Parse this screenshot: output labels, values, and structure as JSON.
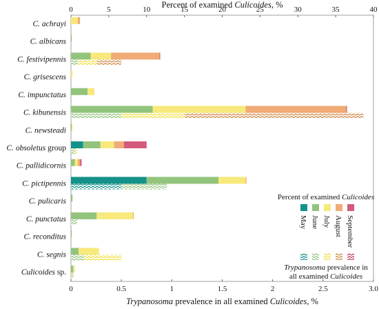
{
  "chart_data": {
    "type": "bar",
    "orientation": "horizontal",
    "stacked": true,
    "top_axis": {
      "label_prefix": "Percent of examined ",
      "label_italic": "Culicoides",
      "label_suffix": ", %",
      "range": [
        0,
        40
      ],
      "ticks": [
        "0",
        "5",
        "10",
        "15",
        "20",
        "25",
        "30",
        "35",
        "40"
      ]
    },
    "bottom_axis": {
      "label_italic": "Trypanosoma",
      "label_middle": " prevalence in all examined ",
      "label_italic2": "Culicoides",
      "label_suffix": ", %",
      "range": [
        0,
        3
      ],
      "ticks": [
        "0",
        "0.5",
        "1",
        "1.5",
        "2",
        "2.5",
        "3.0"
      ]
    },
    "months": [
      "May",
      "June",
      "July",
      "August",
      "September"
    ],
    "colors": [
      "#14928a",
      "#93c47d",
      "#f7e97b",
      "#f0ab76",
      "#d45a7b"
    ],
    "pattern_colors": [
      "#14928a",
      "#93c47d",
      "#f0e040",
      "#d08a48",
      "#c9385c"
    ],
    "legend": {
      "title_prefix": "Percent of examined ",
      "title_italic": "Culicoides",
      "bottom_italic": "Trypanosoma",
      "bottom_line1": " prevalence in",
      "bottom_line2": "all examined ",
      "bottom_italic2": "Culicoides"
    },
    "species": [
      {
        "label": "C. achrayi",
        "italic_part": "C. achrayi",
        "rest": "",
        "percent": [
          0,
          0,
          0.9,
          0.3,
          0
        ],
        "prevalence": [
          0,
          0,
          0,
          0,
          0
        ]
      },
      {
        "label": "C. albicans",
        "italic_part": "C. albicans",
        "rest": "",
        "percent": [
          0,
          0.1,
          0,
          0,
          0
        ],
        "prevalence": [
          0,
          0,
          0,
          0,
          0
        ]
      },
      {
        "label": "C. festivipennis",
        "italic_part": "C. festivipennis",
        "rest": "",
        "percent": [
          0,
          2.6,
          2.7,
          6.4,
          0.1
        ],
        "prevalence": [
          0,
          0.07,
          0.19,
          0.24,
          0
        ]
      },
      {
        "label": "C. grisescens",
        "italic_part": "C. grisescens",
        "rest": "",
        "percent": [
          0,
          0,
          0.2,
          0,
          0
        ],
        "prevalence": [
          0,
          0,
          0,
          0,
          0
        ]
      },
      {
        "label": "C. impunctatus",
        "italic_part": "C. impunctatus",
        "rest": "",
        "percent": [
          0,
          2.2,
          0.9,
          0,
          0
        ],
        "prevalence": [
          0,
          0,
          0,
          0,
          0
        ]
      },
      {
        "label": "C. kibunensis",
        "italic_part": "C. kibunensis",
        "rest": "",
        "percent": [
          0,
          10.8,
          12.3,
          13.3,
          0.1
        ],
        "prevalence": [
          0,
          0.5,
          0.63,
          1.77,
          0
        ]
      },
      {
        "label": "C. newsteadi",
        "italic_part": "C. newsteadi",
        "rest": "",
        "percent": [
          0,
          0.1,
          0.1,
          0,
          0
        ],
        "prevalence": [
          0,
          0,
          0,
          0,
          0
        ]
      },
      {
        "label": "C. obsoletus group",
        "italic_part": "C. obsoletus",
        "rest": " group",
        "percent": [
          1.6,
          2.3,
          1.8,
          1.3,
          3.0
        ],
        "prevalence": [
          0,
          0.04,
          0.02,
          0,
          0
        ]
      },
      {
        "label": "C. pallidicornis",
        "italic_part": "C. pallidicornis",
        "rest": "",
        "percent": [
          0,
          0.5,
          0.4,
          0.3,
          0.2
        ],
        "prevalence": [
          0,
          0,
          0,
          0,
          0
        ]
      },
      {
        "label": "C. pictipennis",
        "italic_part": "C. pictipennis",
        "rest": "",
        "percent": [
          10.0,
          9.5,
          3.6,
          0.1,
          0
        ],
        "prevalence": [
          0.5,
          0.45,
          0,
          0,
          0
        ]
      },
      {
        "label": "C. pulicaris",
        "italic_part": "C. pulicaris",
        "rest": "",
        "percent": [
          0,
          0.2,
          0,
          0,
          0
        ],
        "prevalence": [
          0,
          0,
          0,
          0,
          0
        ]
      },
      {
        "label": "C. punctatus",
        "italic_part": "C. punctatus",
        "rest": "",
        "percent": [
          0,
          3.4,
          4.8,
          0.1,
          0
        ],
        "prevalence": [
          0,
          0.06,
          0,
          0,
          0
        ]
      },
      {
        "label": "C. reconditus",
        "italic_part": "C. reconditus",
        "rest": "",
        "percent": [
          0,
          0.1,
          0,
          0,
          0
        ],
        "prevalence": [
          0,
          0,
          0,
          0,
          0
        ]
      },
      {
        "label": "C. segnis",
        "italic_part": "C. segnis",
        "rest": "",
        "percent": [
          0,
          1.0,
          2.7,
          0,
          0
        ],
        "prevalence": [
          0,
          0.13,
          0.37,
          0,
          0
        ]
      },
      {
        "label": "Culicoides sp.",
        "italic_part": "Culicoides",
        "rest": " sp.",
        "percent": [
          0,
          0.3,
          0.2,
          0,
          0
        ],
        "prevalence": [
          0,
          0.02,
          0.01,
          0,
          0
        ]
      }
    ]
  }
}
